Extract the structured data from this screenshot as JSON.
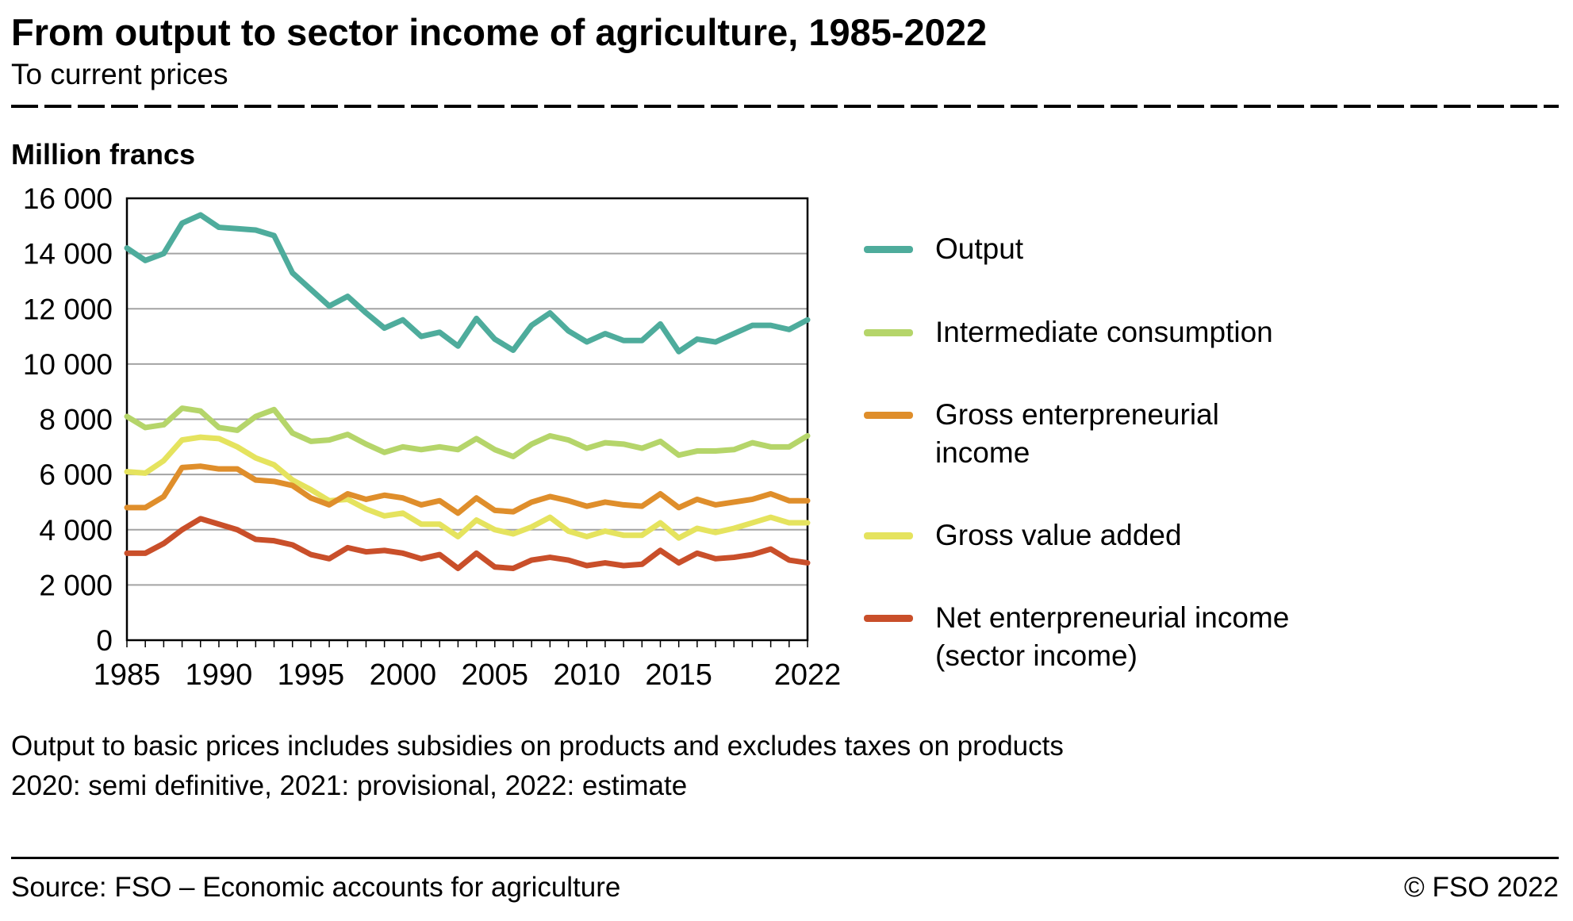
{
  "header": {
    "title": "From output to sector income of agriculture, 1985-2022",
    "subtitle": "To current prices",
    "unit_label": "Million francs"
  },
  "chart_data": {
    "type": "line",
    "title": "From output to sector income of agriculture, 1985-2022",
    "ylabel": "Million francs",
    "ylim": [
      0,
      16000
    ],
    "grid": true,
    "legend_position": "right",
    "years": [
      1985,
      1986,
      1987,
      1988,
      1989,
      1990,
      1991,
      1992,
      1993,
      1994,
      1995,
      1996,
      1997,
      1998,
      1999,
      2000,
      2001,
      2002,
      2003,
      2004,
      2005,
      2006,
      2007,
      2008,
      2009,
      2010,
      2011,
      2012,
      2013,
      2014,
      2015,
      2016,
      2017,
      2018,
      2019,
      2020,
      2021,
      2022
    ],
    "yticks": {
      "positions": [
        0,
        2000,
        4000,
        6000,
        8000,
        10000,
        12000,
        14000,
        16000
      ],
      "labels": [
        "0",
        "2 000",
        "4 000",
        "6 000",
        "8 000",
        "10 000",
        "12 000",
        "14 000",
        "16 000"
      ]
    },
    "xticks": {
      "positions": [
        1985,
        1990,
        1995,
        2000,
        2005,
        2010,
        2015,
        2022
      ],
      "labels": [
        "1985",
        "1990",
        "1995",
        "2000",
        "2005",
        "2010",
        "2015",
        "2022"
      ]
    },
    "series": [
      {
        "name": "Output",
        "color": "#4EAC9C",
        "values": [
          14200,
          13750,
          14000,
          15100,
          15400,
          14950,
          14900,
          14850,
          14650,
          13300,
          12700,
          12100,
          12450,
          11850,
          11300,
          11600,
          11000,
          11150,
          10650,
          11650,
          10900,
          10500,
          11400,
          11850,
          11200,
          10800,
          11100,
          10850,
          10850,
          11450,
          10450,
          10900,
          10800,
          11100,
          11400,
          11400,
          11250,
          11600
        ]
      },
      {
        "name": "Intermediate consumption",
        "color": "#B5D56A",
        "values": [
          8100,
          7700,
          7800,
          8400,
          8300,
          7700,
          7600,
          8100,
          8350,
          7500,
          7200,
          7250,
          7450,
          7100,
          6800,
          7000,
          6900,
          7000,
          6900,
          7300,
          6900,
          6650,
          7100,
          7400,
          7250,
          6950,
          7150,
          7100,
          6950,
          7200,
          6700,
          6850,
          6850,
          6900,
          7150,
          7000,
          7000,
          7400
        ]
      },
      {
        "name": "Gross enterpreneurial income",
        "color": "#DF8E2B",
        "values": [
          4800,
          4800,
          5200,
          6250,
          6300,
          6200,
          6200,
          5800,
          5750,
          5600,
          5150,
          4900,
          5300,
          5100,
          5250,
          5150,
          4900,
          5050,
          4600,
          5150,
          4700,
          4650,
          5000,
          5200,
          5050,
          4850,
          5000,
          4900,
          4850,
          5300,
          4800,
          5100,
          4900,
          5000,
          5100,
          5300,
          5050,
          5050
        ]
      },
      {
        "name": "Gross value added",
        "color": "#E5E35E",
        "values": [
          6100,
          6050,
          6500,
          7250,
          7350,
          7300,
          7000,
          6600,
          6350,
          5800,
          5450,
          5050,
          5100,
          4750,
          4500,
          4600,
          4200,
          4200,
          3750,
          4350,
          4000,
          3850,
          4100,
          4450,
          3950,
          3750,
          3950,
          3800,
          3800,
          4250,
          3700,
          4050,
          3900,
          4050,
          4250,
          4450,
          4250,
          4250
        ]
      },
      {
        "name": "Net enterpreneurial income (sector income)",
        "color": "#C94F2A",
        "values": [
          3150,
          3150,
          3500,
          4000,
          4400,
          4200,
          4000,
          3650,
          3600,
          3450,
          3100,
          2950,
          3350,
          3200,
          3250,
          3150,
          2950,
          3100,
          2600,
          3150,
          2650,
          2600,
          2900,
          3000,
          2900,
          2700,
          2800,
          2700,
          2750,
          3250,
          2800,
          3150,
          2950,
          3000,
          3100,
          3300,
          2900,
          2800
        ]
      }
    ]
  },
  "footnotes": [
    "Output to basic prices includes subsidies on products and excludes taxes on products",
    "2020: semi definitive, 2021: provisional, 2022: estimate"
  ],
  "footer": {
    "source": "Source: FSO – Economic accounts for agriculture",
    "copyright": "© FSO 2022"
  }
}
